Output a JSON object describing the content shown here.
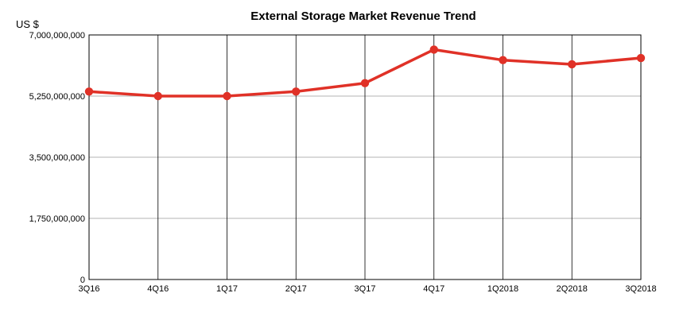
{
  "chart_data": {
    "type": "line",
    "title": "External Storage Market Revenue Trend",
    "unit_label": "US $",
    "xlabel": "",
    "ylabel": "",
    "categories": [
      "3Q16",
      "4Q16",
      "1Q17",
      "2Q17",
      "3Q17",
      "4Q17",
      "1Q2018",
      "2Q2018",
      "3Q2018"
    ],
    "series": [
      {
        "values": [
          5380000000,
          5250000000,
          5250000000,
          5380000000,
          5620000000,
          6580000000,
          6280000000,
          6160000000,
          6340000000
        ],
        "color": "#e03127"
      }
    ],
    "yticks": [
      0,
      1750000000,
      3500000000,
      5250000000,
      7000000000
    ],
    "ytick_labels": [
      "0",
      "1,750,000,000",
      "3,500,000,000",
      "5,250,000,000",
      "7,000,000,000"
    ],
    "ylim": [
      0,
      7000000000
    ],
    "grid": true,
    "legend": "none"
  }
}
